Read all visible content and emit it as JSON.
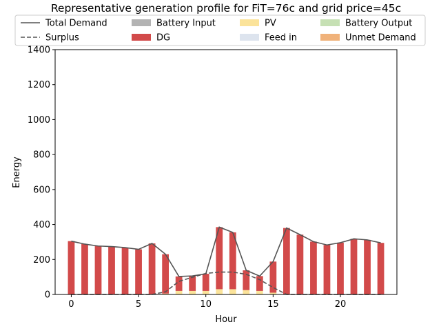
{
  "chart_data": {
    "type": "bar",
    "title": "Representative generation profile for FiT=76c and grid price=45c",
    "xlabel": "Hour",
    "ylabel": "Energy",
    "xlim": [
      -1.2,
      24.2
    ],
    "ylim": [
      0,
      1400
    ],
    "xticks": [
      0,
      5,
      10,
      15,
      20
    ],
    "yticks": [
      0,
      200,
      400,
      600,
      800,
      1000,
      1200,
      1400
    ],
    "legend_position": "top",
    "x": [
      0,
      1,
      2,
      3,
      4,
      5,
      6,
      7,
      8,
      9,
      10,
      11,
      12,
      13,
      14,
      15,
      16,
      17,
      18,
      19,
      20,
      21,
      22,
      23
    ],
    "series": [
      {
        "name": "Total Demand",
        "kind": "line",
        "style": "solid",
        "color": "#555555",
        "values": [
          305,
          288,
          277,
          274,
          268,
          258,
          292,
          230,
          103,
          106,
          118,
          385,
          355,
          138,
          105,
          188,
          380,
          342,
          302,
          283,
          296,
          318,
          312,
          295
        ]
      },
      {
        "name": "Surplus",
        "kind": "line",
        "style": "dashed",
        "color": "#555555",
        "values": [
          0,
          0,
          0,
          0,
          0,
          0,
          0,
          15,
          75,
          98,
          120,
          128,
          128,
          115,
          85,
          40,
          0,
          0,
          0,
          0,
          0,
          0,
          0,
          0
        ]
      },
      {
        "name": "Battery Input",
        "kind": "bar",
        "color": "#b3b3b3",
        "values": [
          0,
          0,
          0,
          0,
          0,
          0,
          0,
          0,
          0,
          0,
          0,
          0,
          0,
          0,
          0,
          0,
          0,
          0,
          0,
          0,
          0,
          0,
          0,
          0
        ]
      },
      {
        "name": "DG",
        "kind": "bar",
        "color": "#d24a4a",
        "values": [
          305,
          288,
          277,
          274,
          268,
          258,
          292,
          225,
          83,
          86,
          98,
          355,
          325,
          113,
          85,
          178,
          380,
          342,
          302,
          283,
          296,
          318,
          312,
          295
        ]
      },
      {
        "name": "PV",
        "kind": "bar",
        "color": "#fbe39a",
        "values": [
          0,
          0,
          0,
          0,
          0,
          0,
          0,
          5,
          20,
          20,
          20,
          30,
          30,
          25,
          20,
          10,
          0,
          0,
          0,
          0,
          0,
          0,
          0,
          0
        ]
      },
      {
        "name": "Feed in",
        "kind": "bar",
        "color": "#dde4ee",
        "values": [
          0,
          0,
          0,
          0,
          0,
          0,
          0,
          0,
          0,
          0,
          0,
          0,
          0,
          0,
          0,
          0,
          0,
          0,
          0,
          0,
          0,
          0,
          0,
          0
        ]
      },
      {
        "name": "Battery Output",
        "kind": "bar",
        "color": "#c6e0b4",
        "values": [
          0,
          0,
          0,
          0,
          0,
          0,
          0,
          0,
          0,
          0,
          0,
          0,
          0,
          0,
          0,
          0,
          0,
          0,
          0,
          0,
          0,
          0,
          0,
          0
        ]
      },
      {
        "name": "Unmet Demand",
        "kind": "bar",
        "color": "#f0b27a",
        "values": [
          0,
          0,
          0,
          0,
          0,
          0,
          0,
          0,
          0,
          0,
          0,
          0,
          0,
          0,
          0,
          0,
          0,
          0,
          0,
          0,
          0,
          0,
          0,
          0
        ]
      }
    ]
  }
}
